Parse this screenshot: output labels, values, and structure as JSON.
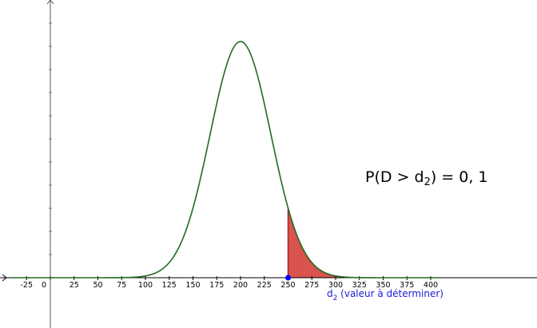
{
  "chart_data": {
    "type": "area",
    "distribution": "normal",
    "mean": 200,
    "sd": 32,
    "xlim": [
      -40,
      410
    ],
    "x_ticks": [
      -25,
      0,
      25,
      50,
      75,
      100,
      125,
      150,
      175,
      200,
      225,
      250,
      275,
      300,
      325,
      350,
      375,
      400
    ],
    "tick_labels": [
      "-25",
      "0",
      "25",
      "50",
      "75",
      "100",
      "125",
      "150",
      "175",
      "200",
      "225",
      "250",
      "275",
      "300",
      "325",
      "350",
      "375",
      "400"
    ],
    "shaded_region": {
      "from": 250,
      "to": 410
    },
    "point": {
      "x": 250,
      "label_main": "d",
      "label_sub": "2",
      "label_rest": " (valeur à déterminer)"
    },
    "annotation": {
      "prefix": "P(D > d",
      "sub": "2",
      "suffix": ") = 0, 1"
    },
    "grid": false,
    "legend": "none",
    "colors": {
      "curve": "#1f6b1f",
      "fill": "#d9534f",
      "fill_stroke": "#b22222",
      "point": "#0000ff",
      "axis": "#000000",
      "minor_tick": "#8a8a8a"
    }
  }
}
